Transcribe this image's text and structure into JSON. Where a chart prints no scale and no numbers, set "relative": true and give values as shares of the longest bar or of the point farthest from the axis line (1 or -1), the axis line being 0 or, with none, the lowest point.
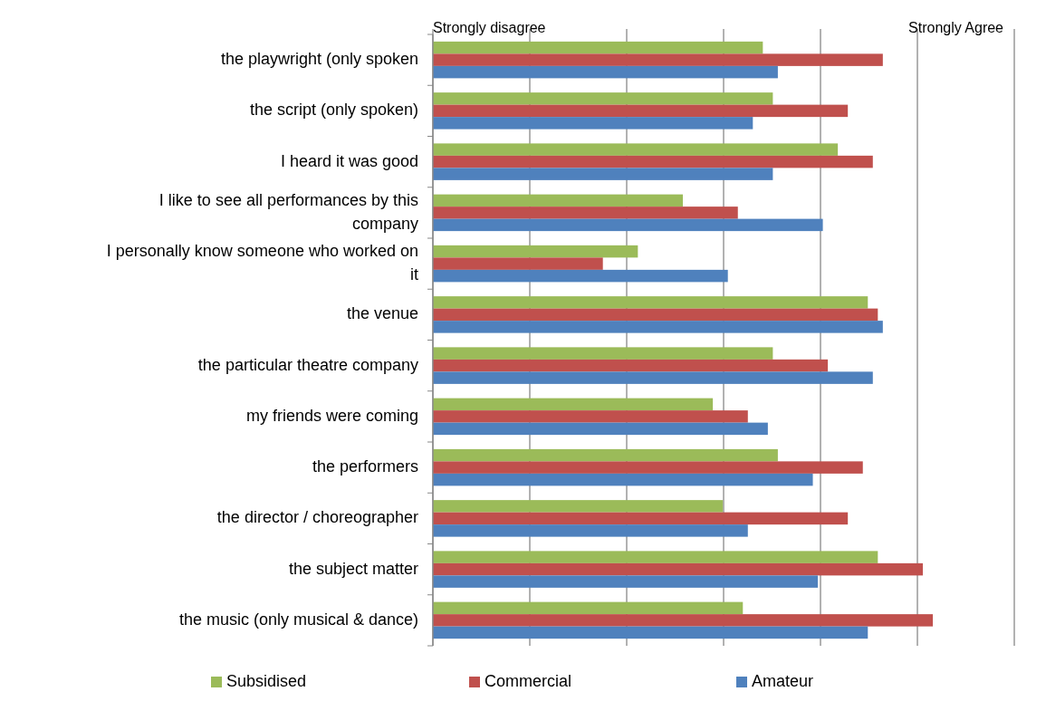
{
  "chart_data": {
    "type": "bar",
    "orientation": "horizontal",
    "relative": true,
    "grid": true,
    "legend": "bottom",
    "categories": [
      "the playwright (only spoken",
      "the script (only spoken)",
      "I heard it was good",
      "I like to see all performances by this company",
      "I personally know someone who worked on it",
      "the venue",
      "the particular theatre company",
      "my friends were coming",
      "the performers",
      "the director / choreographer",
      "the subject matter",
      "the music (only musical & dance)"
    ],
    "series": [
      {
        "name": "Subsidised",
        "color": "#9bbb59",
        "values": [
          0.66,
          0.68,
          0.81,
          0.5,
          0.41,
          0.87,
          0.68,
          0.56,
          0.69,
          0.58,
          0.89,
          0.62
        ]
      },
      {
        "name": "Commercial",
        "color": "#c0504d",
        "values": [
          0.9,
          0.83,
          0.88,
          0.61,
          0.34,
          0.89,
          0.79,
          0.63,
          0.86,
          0.83,
          0.98,
          1
        ]
      },
      {
        "name": "Amateur",
        "color": "#4f81bd",
        "values": [
          0.69,
          0.64,
          0.68,
          0.78,
          0.59,
          0.9,
          0.88,
          0.67,
          0.76,
          0.63,
          0.77,
          0.87
        ]
      }
    ],
    "annotations": [
      "Strongly disagree",
      "Strongly Agree"
    ]
  }
}
